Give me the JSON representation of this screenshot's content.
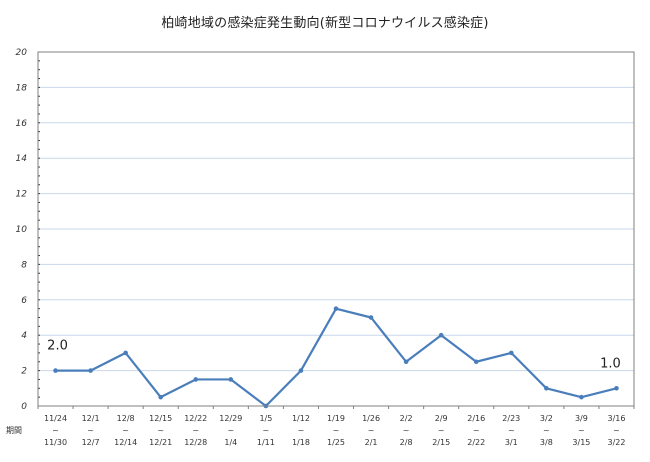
{
  "title": "柏崎地域の感染症発生動向(新型コロナウイルス感染症)",
  "period_label": "期間",
  "tilde": "~",
  "annotations": [
    {
      "label": "2.0",
      "index": 0
    },
    {
      "label": "1.0",
      "index": 16
    }
  ],
  "colors": {
    "line": "#4a7ebb",
    "gridline": "#c9d7ea",
    "axis": "#808080"
  },
  "chart_data": {
    "type": "line",
    "title": "柏崎地域の感染症発生動向(新型コロナウイルス感染症)",
    "xlabel": "期間",
    "ylabel": "",
    "ylim": [
      0,
      20
    ],
    "yticks": [
      0,
      2,
      4,
      6,
      8,
      10,
      12,
      14,
      16,
      18,
      20
    ],
    "grid": true,
    "legend": null,
    "categories": [
      {
        "start": "11/24",
        "end": "11/30"
      },
      {
        "start": "12/1",
        "end": "12/7"
      },
      {
        "start": "12/8",
        "end": "12/14"
      },
      {
        "start": "12/15",
        "end": "12/21"
      },
      {
        "start": "12/22",
        "end": "12/28"
      },
      {
        "start": "12/29",
        "end": "1/4"
      },
      {
        "start": "1/5",
        "end": "1/11"
      },
      {
        "start": "1/12",
        "end": "1/18"
      },
      {
        "start": "1/19",
        "end": "1/25"
      },
      {
        "start": "1/26",
        "end": "2/1"
      },
      {
        "start": "2/2",
        "end": "2/8"
      },
      {
        "start": "2/9",
        "end": "2/15"
      },
      {
        "start": "2/16",
        "end": "2/22"
      },
      {
        "start": "2/23",
        "end": "3/1"
      },
      {
        "start": "3/2",
        "end": "3/8"
      },
      {
        "start": "3/9",
        "end": "3/15"
      },
      {
        "start": "3/16",
        "end": "3/22"
      }
    ],
    "series": [
      {
        "name": "新型コロナウイルス感染症",
        "values": [
          2.0,
          2.0,
          3.0,
          0.5,
          1.5,
          1.5,
          0.0,
          2.0,
          5.5,
          5.0,
          2.5,
          4.0,
          2.5,
          3.0,
          1.0,
          0.5,
          1.0
        ]
      }
    ],
    "annotations": [
      {
        "text": "2.0",
        "x": "11/24~11/30"
      },
      {
        "text": "1.0",
        "x": "3/16~3/22"
      }
    ]
  }
}
